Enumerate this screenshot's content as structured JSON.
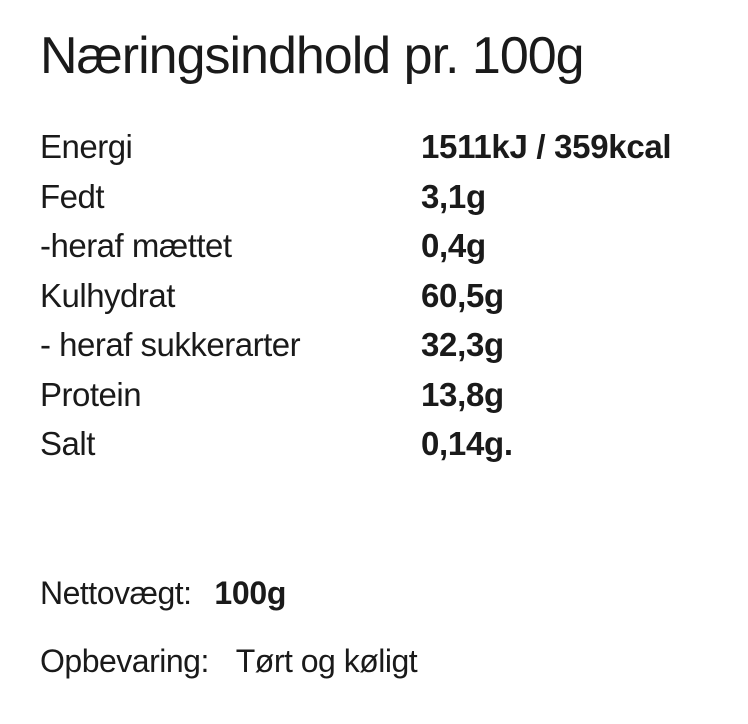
{
  "title": "Næringsindhold pr. 100g",
  "nutrition": {
    "rows": [
      {
        "label": "Energi",
        "value": "1511kJ / 359kcal"
      },
      {
        "label": "Fedt",
        "value": "3,1g"
      },
      {
        "label": "-heraf mættet",
        "value": "0,4g"
      },
      {
        "label": "Kulhydrat",
        "value": "60,5g"
      },
      {
        "label": "- heraf sukkerarter",
        "value": "32,3g"
      },
      {
        "label": "Protein",
        "value": "13,8g"
      },
      {
        "label": "Salt",
        "value": "0,14g."
      }
    ]
  },
  "details": {
    "net_weight_label": "Nettovægt:",
    "net_weight_value": "100g",
    "storage_label": "Opbevaring:",
    "storage_value": "Tørt og køligt"
  },
  "colors": {
    "text": "#1a1a1a",
    "background": "#ffffff"
  }
}
